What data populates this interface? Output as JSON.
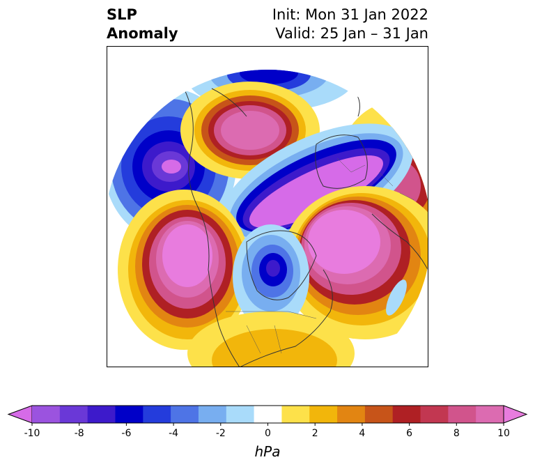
{
  "header": {
    "title_line1": "SLP",
    "title_line2": "Anomaly",
    "init_text": "Init: Mon 31 Jan 2022",
    "valid_text": "Valid: 25 Jan – 31 Jan"
  },
  "colorbar": {
    "unit": "hPa",
    "min": -10,
    "max": 10,
    "step": 1.2,
    "tick_labels": [
      "-10",
      "-8",
      "-6",
      "-4",
      "-2",
      "0",
      "2",
      "4",
      "6",
      "8",
      "10"
    ],
    "colors": [
      "#d66be8",
      "#9b53df",
      "#6a38d7",
      "#3d1acb",
      "#0000c8",
      "#243cdc",
      "#4e74e6",
      "#78aef0",
      "#a9dbfa",
      "#ffffff",
      "#fde14a",
      "#f2b60b",
      "#e28512",
      "#c75419",
      "#af2024",
      "#c23751",
      "#d1548c",
      "#dc6bb1",
      "#e87cde"
    ]
  },
  "map": {
    "projection": "north-polar-stereographic",
    "colors": {
      "neg_strong": "#0000c8",
      "neg_mid": "#4e74e6",
      "neg_light": "#a9dbfa",
      "neg_purple": "#d66be8",
      "pos_light": "#fde14a",
      "pos_mid": "#f2b60b",
      "pos_orange": "#e28512",
      "pos_red": "#af2024",
      "pos_pink": "#dc6bb1",
      "pos_magenta": "#e87cde"
    }
  }
}
